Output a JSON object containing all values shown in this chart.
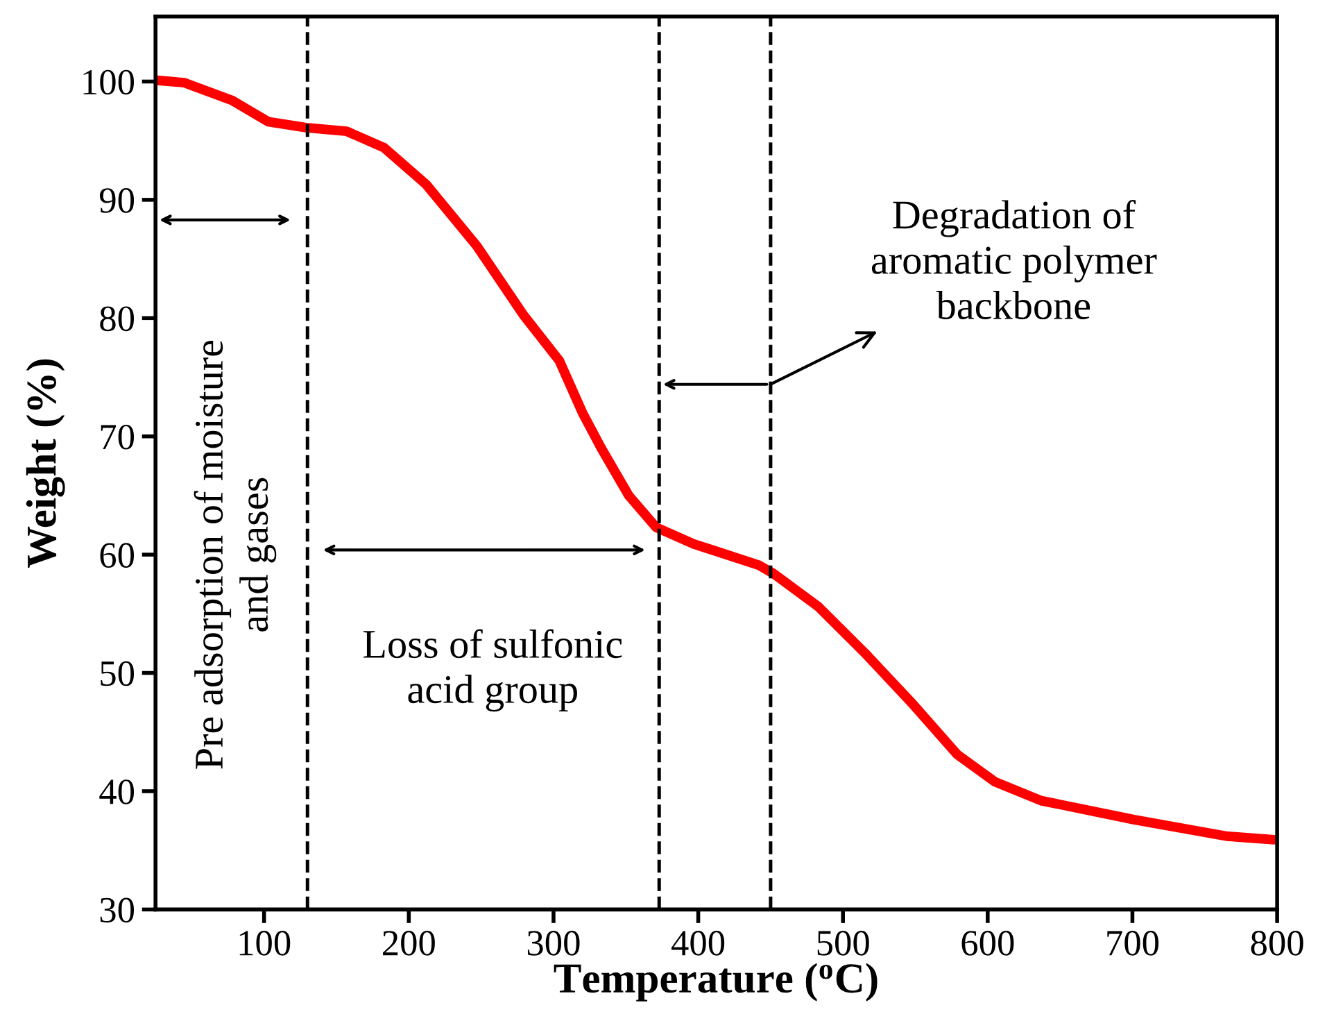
{
  "chart_data": {
    "type": "line",
    "xlabel": "Temperature ($^{o}$C)",
    "ylabel": "Weight (%)",
    "x": [
      26,
      45,
      78,
      103,
      129,
      157,
      183,
      212,
      247,
      279,
      304,
      320,
      333,
      352,
      371,
      397,
      442,
      452,
      483,
      515,
      548,
      579,
      605,
      637,
      701,
      765,
      798
    ],
    "series": [
      {
        "color": "#ff0000",
        "values": [
          100.1,
          99.9,
          98.4,
          96.6,
          96.1,
          95.8,
          94.4,
          91.3,
          86.1,
          80.3,
          76.4,
          72.0,
          69.0,
          65.0,
          62.3,
          60.9,
          59.1,
          58.4,
          55.6,
          51.7,
          47.4,
          43.1,
          40.8,
          39.2,
          37.6,
          36.2,
          35.9
        ]
      }
    ],
    "xlim": [
      25,
      800
    ],
    "ylim": [
      30,
      105.5
    ],
    "xticks": [
      100,
      200,
      300,
      400,
      500,
      600,
      700,
      800
    ],
    "yticks": [
      30,
      40,
      50,
      60,
      70,
      80,
      90,
      100
    ],
    "ref_lines": [
      {
        "axis": "x",
        "value": 130,
        "color": "#000000",
        "line_style": "dashed"
      },
      {
        "axis": "x",
        "value": 373,
        "color": "#000000",
        "line_style": "dashed"
      },
      {
        "axis": "x",
        "value": 450,
        "color": "#000000",
        "line_style": "dashed"
      }
    ],
    "annotations": [
      "Pre adsorption of moisture\nand gases",
      "Loss of sulfonic\nacid group",
      {
        "text": "Degradation of\naromatic polymer\nbackbone",
        "x": 450,
        "y": 74.4
      }
    ],
    "grid": false,
    "legend": false,
    "marker": "none",
    "line_style": "solid"
  }
}
